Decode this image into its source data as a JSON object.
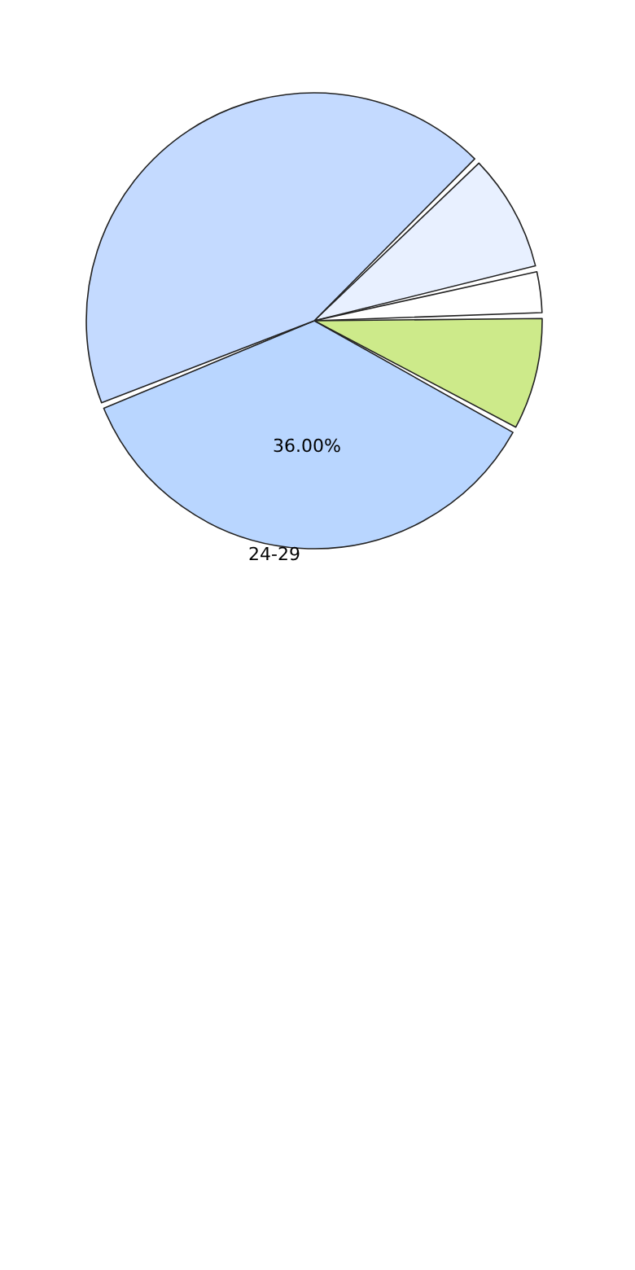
{
  "chart_data": {
    "type": "pie",
    "categories": [
      null,
      null,
      null,
      "24-29",
      null
    ],
    "values": [
      8.7,
      3.3,
      8.3,
      36,
      43.7
    ],
    "colors": [
      "#e8f0ff",
      "#ffffff",
      "#cdea8a",
      "#b9d6ff",
      "#c4daff"
    ],
    "value_labels": [
      null,
      null,
      null,
      "36.00%",
      null
    ]
  }
}
